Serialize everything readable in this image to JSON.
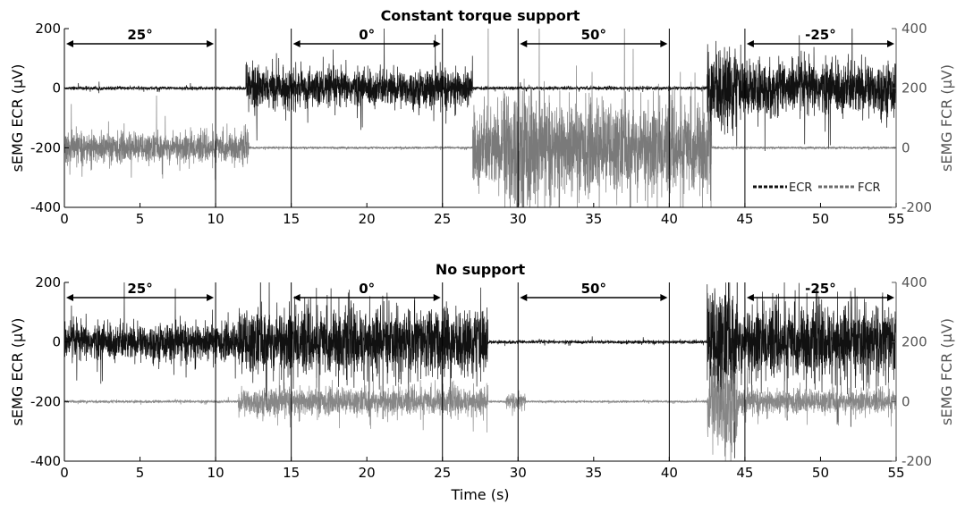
{
  "chart_data": [
    {
      "type": "line",
      "title": "Constant torque support",
      "ylabel": "sEMG ECR (μV)",
      "y2label": "sEMG FCR (μV)",
      "xlabel": "",
      "xlim": [
        0,
        55
      ],
      "ylim": [
        -400,
        200
      ],
      "y2lim": [
        -200,
        400
      ],
      "xticks": [
        "0",
        "5",
        "10",
        "15",
        "20",
        "25",
        "30",
        "35",
        "40",
        "45",
        "50",
        "55"
      ],
      "yticks": [
        "200",
        "0",
        "-200",
        "-400"
      ],
      "y2ticks": [
        "400",
        "200",
        "0",
        "-200"
      ],
      "vlines": [
        10,
        15,
        25,
        30,
        40,
        45
      ],
      "segments": [
        {
          "label": "25°",
          "from": 0,
          "to": 10
        },
        {
          "label": "0°",
          "from": 15,
          "to": 25
        },
        {
          "label": "50°",
          "from": 30,
          "to": 40
        },
        {
          "label": "-25°",
          "from": 45,
          "to": 55
        }
      ],
      "legend": {
        "position": "bottom-right",
        "entries": [
          "ECR",
          "FCR"
        ]
      },
      "series": [
        {
          "name": "ECR",
          "axis": "left",
          "color": "#111111",
          "baseline": 0,
          "bursts": [
            {
              "from": 0,
              "to": 12,
              "amp": 5
            },
            {
              "from": 12,
              "to": 12.8,
              "amp": 85
            },
            {
              "from": 12.8,
              "to": 27,
              "amp": 55
            },
            {
              "from": 27,
              "to": 42.5,
              "amp": 5
            },
            {
              "from": 42.5,
              "to": 44.5,
              "amp": 130
            },
            {
              "from": 44.5,
              "to": 55,
              "amp": 80
            }
          ]
        },
        {
          "name": "FCR",
          "axis": "right",
          "color": "#6b6b6b",
          "baseline": 0,
          "bursts": [
            {
              "from": 0,
              "to": 12.2,
              "amp": 45
            },
            {
              "from": 12.2,
              "to": 27,
              "amp": 3
            },
            {
              "from": 27,
              "to": 29,
              "amp": 120
            },
            {
              "from": 29,
              "to": 31,
              "amp": 200
            },
            {
              "from": 31,
              "to": 42.8,
              "amp": 140
            },
            {
              "from": 42.8,
              "to": 55,
              "amp": 3
            }
          ]
        }
      ]
    },
    {
      "type": "line",
      "title": "No support",
      "ylabel": "sEMG ECR (μV)",
      "y2label": "sEMG FCR (μV)",
      "xlabel": "Time (s)",
      "xlim": [
        0,
        55
      ],
      "ylim": [
        -400,
        200
      ],
      "y2lim": [
        -200,
        400
      ],
      "xticks": [
        "0",
        "5",
        "10",
        "15",
        "20",
        "25",
        "30",
        "35",
        "40",
        "45",
        "50",
        "55"
      ],
      "yticks": [
        "200",
        "0",
        "-200",
        "-400"
      ],
      "y2ticks": [
        "400",
        "200",
        "0",
        "-200"
      ],
      "vlines": [
        10,
        15,
        25,
        30,
        40,
        45
      ],
      "segments": [
        {
          "label": "25°",
          "from": 0,
          "to": 10
        },
        {
          "label": "0°",
          "from": 15,
          "to": 25
        },
        {
          "label": "50°",
          "from": 30,
          "to": 40
        },
        {
          "label": "-25°",
          "from": 45,
          "to": 55
        }
      ],
      "series": [
        {
          "name": "ECR",
          "axis": "left",
          "color": "#111111",
          "baseline": 0,
          "bursts": [
            {
              "from": 0,
              "to": 11.5,
              "amp": 55
            },
            {
              "from": 11.5,
              "to": 28,
              "amp": 100
            },
            {
              "from": 28,
              "to": 42.5,
              "amp": 5
            },
            {
              "from": 42.5,
              "to": 44.5,
              "amp": 170
            },
            {
              "from": 44.5,
              "to": 55,
              "amp": 110
            }
          ]
        },
        {
          "name": "FCR",
          "axis": "right",
          "color": "#7a7a7a",
          "baseline": 0,
          "bursts": [
            {
              "from": 0,
              "to": 11.5,
              "amp": 4
            },
            {
              "from": 11.5,
              "to": 28,
              "amp": 40
            },
            {
              "from": 28,
              "to": 29.2,
              "amp": 3
            },
            {
              "from": 29.2,
              "to": 30.5,
              "amp": 25
            },
            {
              "from": 30.5,
              "to": 42.5,
              "amp": 3
            },
            {
              "from": 42.5,
              "to": 44.5,
              "amp": 140
            },
            {
              "from": 44.5,
              "to": 55,
              "amp": 35
            }
          ]
        }
      ]
    }
  ]
}
